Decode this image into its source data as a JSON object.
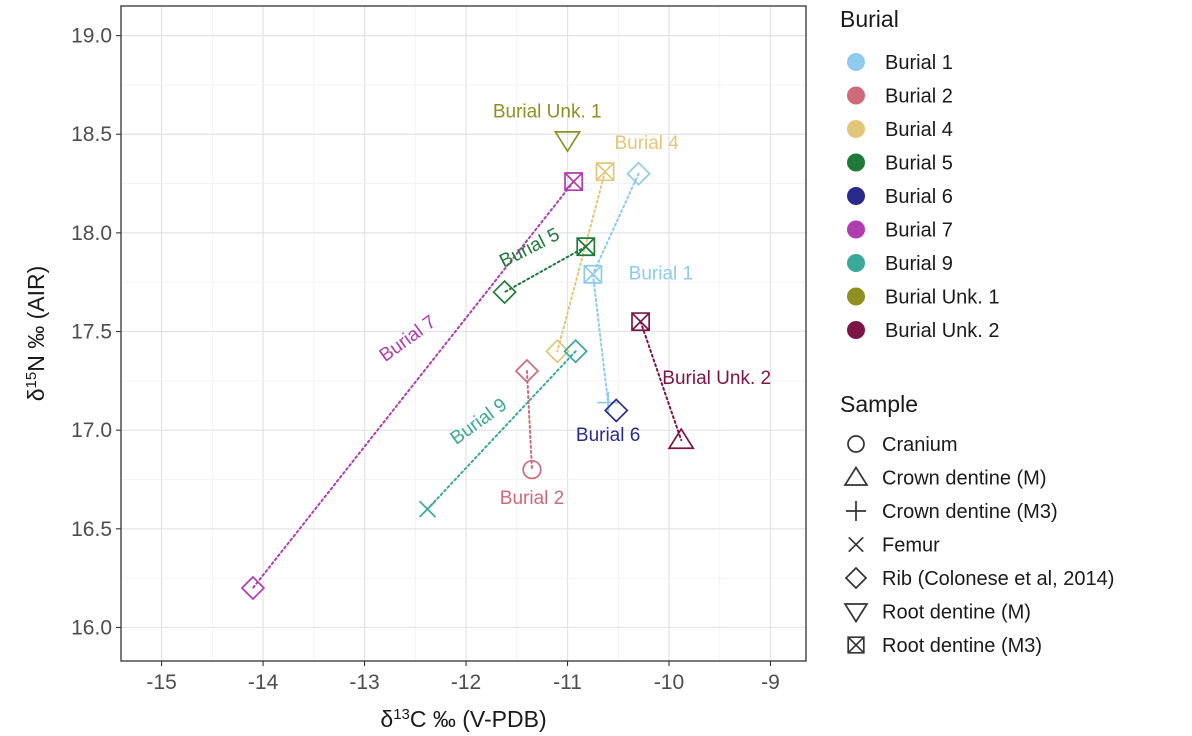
{
  "chart_data": {
    "type": "scatter",
    "xlabel": "δ13C ‰ (V-PDB)",
    "ylabel": "δ15N ‰ (AIR)",
    "xlim": [
      -15.4,
      -8.65
    ],
    "ylim": [
      15.83,
      19.15
    ],
    "x_ticks": [
      -15,
      -14,
      -13,
      -12,
      -11,
      -10,
      -9
    ],
    "y_ticks": [
      16.0,
      16.5,
      17.0,
      17.5,
      18.0,
      18.5,
      19.0
    ],
    "grid": true,
    "legend_position": "right",
    "legend_burial_title": "Burial",
    "legend_sample_title": "Sample",
    "burials": [
      {
        "name": "Burial 1",
        "color": "#8ecbee"
      },
      {
        "name": "Burial 2",
        "color": "#d06a7b"
      },
      {
        "name": "Burial 4",
        "color": "#e2c77a"
      },
      {
        "name": "Burial 5",
        "color": "#1f7a3a"
      },
      {
        "name": "Burial 6",
        "color": "#2a2a8c"
      },
      {
        "name": "Burial 7",
        "color": "#b03db0"
      },
      {
        "name": "Burial 9",
        "color": "#3aa89a"
      },
      {
        "name": "Burial Unk. 1",
        "color": "#8f8f22"
      },
      {
        "name": "Burial Unk. 2",
        "color": "#7d1448"
      }
    ],
    "samples": [
      {
        "name": "Cranium",
        "shape": "circle"
      },
      {
        "name": "Crown dentine (M)",
        "shape": "triangle-up"
      },
      {
        "name": "Crown dentine (M3)",
        "shape": "plus"
      },
      {
        "name": "Femur",
        "shape": "cross"
      },
      {
        "name": "Rib (Colonese et al, 2014)",
        "shape": "diamond"
      },
      {
        "name": "Root dentine (M)",
        "shape": "triangle-down"
      },
      {
        "name": "Root dentine (M3)",
        "shape": "square-x"
      }
    ],
    "points": [
      {
        "burial": "Burial 1",
        "sample": "Rib (Colonese et al, 2014)",
        "x": -10.3,
        "y": 18.3
      },
      {
        "burial": "Burial 1",
        "sample": "Root dentine (M3)",
        "x": -10.75,
        "y": 17.79
      },
      {
        "burial": "Burial 1",
        "sample": "Crown dentine (M3)",
        "x": -10.6,
        "y": 17.14
      },
      {
        "burial": "Burial 2",
        "sample": "Rib (Colonese et al, 2014)",
        "x": -11.4,
        "y": 17.3
      },
      {
        "burial": "Burial 2",
        "sample": "Cranium",
        "x": -11.35,
        "y": 16.8
      },
      {
        "burial": "Burial 4",
        "sample": "Root dentine (M3)",
        "x": -10.63,
        "y": 18.31
      },
      {
        "burial": "Burial 4",
        "sample": "Rib (Colonese et al, 2014)",
        "x": -11.1,
        "y": 17.4
      },
      {
        "burial": "Burial 5",
        "sample": "Root dentine (M3)",
        "x": -10.82,
        "y": 17.93
      },
      {
        "burial": "Burial 5",
        "sample": "Rib (Colonese et al, 2014)",
        "x": -11.62,
        "y": 17.7
      },
      {
        "burial": "Burial 6",
        "sample": "Rib (Colonese et al, 2014)",
        "x": -10.52,
        "y": 17.1
      },
      {
        "burial": "Burial 7",
        "sample": "Root dentine (M3)",
        "x": -10.94,
        "y": 18.26
      },
      {
        "burial": "Burial 7",
        "sample": "Rib (Colonese et al, 2014)",
        "x": -14.1,
        "y": 16.2
      },
      {
        "burial": "Burial 9",
        "sample": "Rib (Colonese et al, 2014)",
        "x": -10.92,
        "y": 17.4
      },
      {
        "burial": "Burial 9",
        "sample": "Femur",
        "x": -12.38,
        "y": 16.6
      },
      {
        "burial": "Burial Unk. 1",
        "sample": "Root dentine (M)",
        "x": -11.0,
        "y": 18.47
      },
      {
        "burial": "Burial Unk. 2",
        "sample": "Root dentine (M3)",
        "x": -10.28,
        "y": 17.55
      },
      {
        "burial": "Burial Unk. 2",
        "sample": "Crown dentine (M)",
        "x": -9.88,
        "y": 16.95
      }
    ],
    "connectors": [
      {
        "burial": "Burial 1",
        "from": [
          -10.3,
          18.3
        ],
        "to": [
          -10.75,
          17.79
        ]
      },
      {
        "burial": "Burial 1",
        "from": [
          -10.75,
          17.79
        ],
        "to": [
          -10.6,
          17.14
        ]
      },
      {
        "burial": "Burial 2",
        "from": [
          -11.4,
          17.3
        ],
        "to": [
          -11.35,
          16.8
        ]
      },
      {
        "burial": "Burial 4",
        "from": [
          -10.63,
          18.31
        ],
        "to": [
          -11.1,
          17.4
        ]
      },
      {
        "burial": "Burial 5",
        "from": [
          -10.82,
          17.93
        ],
        "to": [
          -11.62,
          17.7
        ]
      },
      {
        "burial": "Burial 7",
        "from": [
          -10.94,
          18.26
        ],
        "to": [
          -14.1,
          16.2
        ]
      },
      {
        "burial": "Burial 9",
        "from": [
          -10.92,
          17.4
        ],
        "to": [
          -12.38,
          16.6
        ]
      },
      {
        "burial": "Burial Unk. 2",
        "from": [
          -10.28,
          17.55
        ],
        "to": [
          -9.88,
          16.95
        ]
      }
    ],
    "annotations": [
      {
        "text": "Burial Unk. 1",
        "burial": "Burial Unk. 1",
        "x": -11.2,
        "y": 18.61,
        "rotate": 0
      },
      {
        "text": "Burial 4",
        "burial": "Burial 4",
        "x": -10.22,
        "y": 18.45,
        "rotate": 0
      },
      {
        "text": "Burial 5",
        "burial": "Burial 5",
        "x": -11.37,
        "y": 17.92,
        "rotate": -27
      },
      {
        "text": "Burial 1",
        "burial": "Burial 1",
        "x": -10.08,
        "y": 17.79,
        "rotate": 0
      },
      {
        "text": "Burial Unk. 2",
        "burial": "Burial Unk. 2",
        "x": -9.53,
        "y": 17.26,
        "rotate": 0
      },
      {
        "text": "Burial 7",
        "burial": "Burial 7",
        "x": -12.57,
        "y": 17.46,
        "rotate": -36
      },
      {
        "text": "Burial 9",
        "burial": "Burial 9",
        "x": -11.87,
        "y": 17.04,
        "rotate": -36
      },
      {
        "text": "Burial 6",
        "burial": "Burial 6",
        "x": -10.6,
        "y": 16.97,
        "rotate": 0
      },
      {
        "text": "Burial 2",
        "burial": "Burial 2",
        "x": -11.35,
        "y": 16.65,
        "rotate": 0
      }
    ]
  }
}
